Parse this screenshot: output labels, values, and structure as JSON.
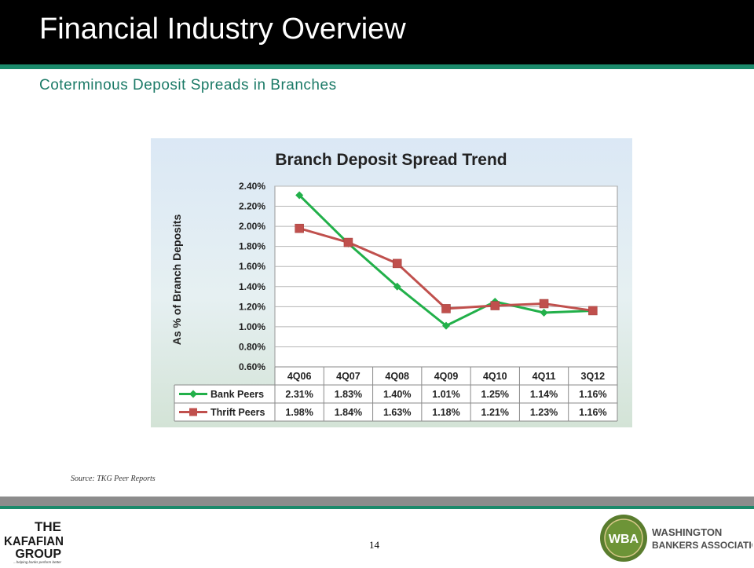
{
  "slide": {
    "title": "Financial Industry Overview",
    "subtitle": "Coterminous Deposit Spreads in Branches",
    "source": "Source:  TKG Peer Reports",
    "page_number": "14"
  },
  "logos": {
    "left": {
      "line1": "THE",
      "line2": "KAFAFIAN",
      "line3": "GROUP",
      "tagline": "...helping banks perform better"
    },
    "right": {
      "badge": "WBA",
      "line1": "WASHINGTON",
      "line2": "BANKERS ASSOCIATION"
    }
  },
  "chart_data": {
    "type": "line",
    "title": "Branch Deposit Spread Trend",
    "ylabel": "As % of Branch Deposits",
    "categories": [
      "4Q06",
      "4Q07",
      "4Q08",
      "4Q09",
      "4Q10",
      "4Q11",
      "3Q12"
    ],
    "y_ticks": [
      "0.60%",
      "0.80%",
      "1.00%",
      "1.20%",
      "1.40%",
      "1.60%",
      "1.80%",
      "2.00%",
      "2.20%",
      "2.40%"
    ],
    "ylim": [
      0.6,
      2.4
    ],
    "grid": true,
    "series": [
      {
        "name": "Bank Peers",
        "color": "#22b04a",
        "marker": "diamond",
        "values": [
          2.31,
          1.83,
          1.4,
          1.01,
          1.25,
          1.14,
          1.16
        ],
        "labels": [
          "2.31%",
          "1.83%",
          "1.40%",
          "1.01%",
          "1.25%",
          "1.14%",
          "1.16%"
        ]
      },
      {
        "name": "Thrift Peers",
        "color": "#c0504d",
        "marker": "square",
        "values": [
          1.98,
          1.84,
          1.63,
          1.18,
          1.21,
          1.23,
          1.16
        ],
        "labels": [
          "1.98%",
          "1.84%",
          "1.63%",
          "1.18%",
          "1.21%",
          "1.23%",
          "1.16%"
        ]
      }
    ]
  }
}
